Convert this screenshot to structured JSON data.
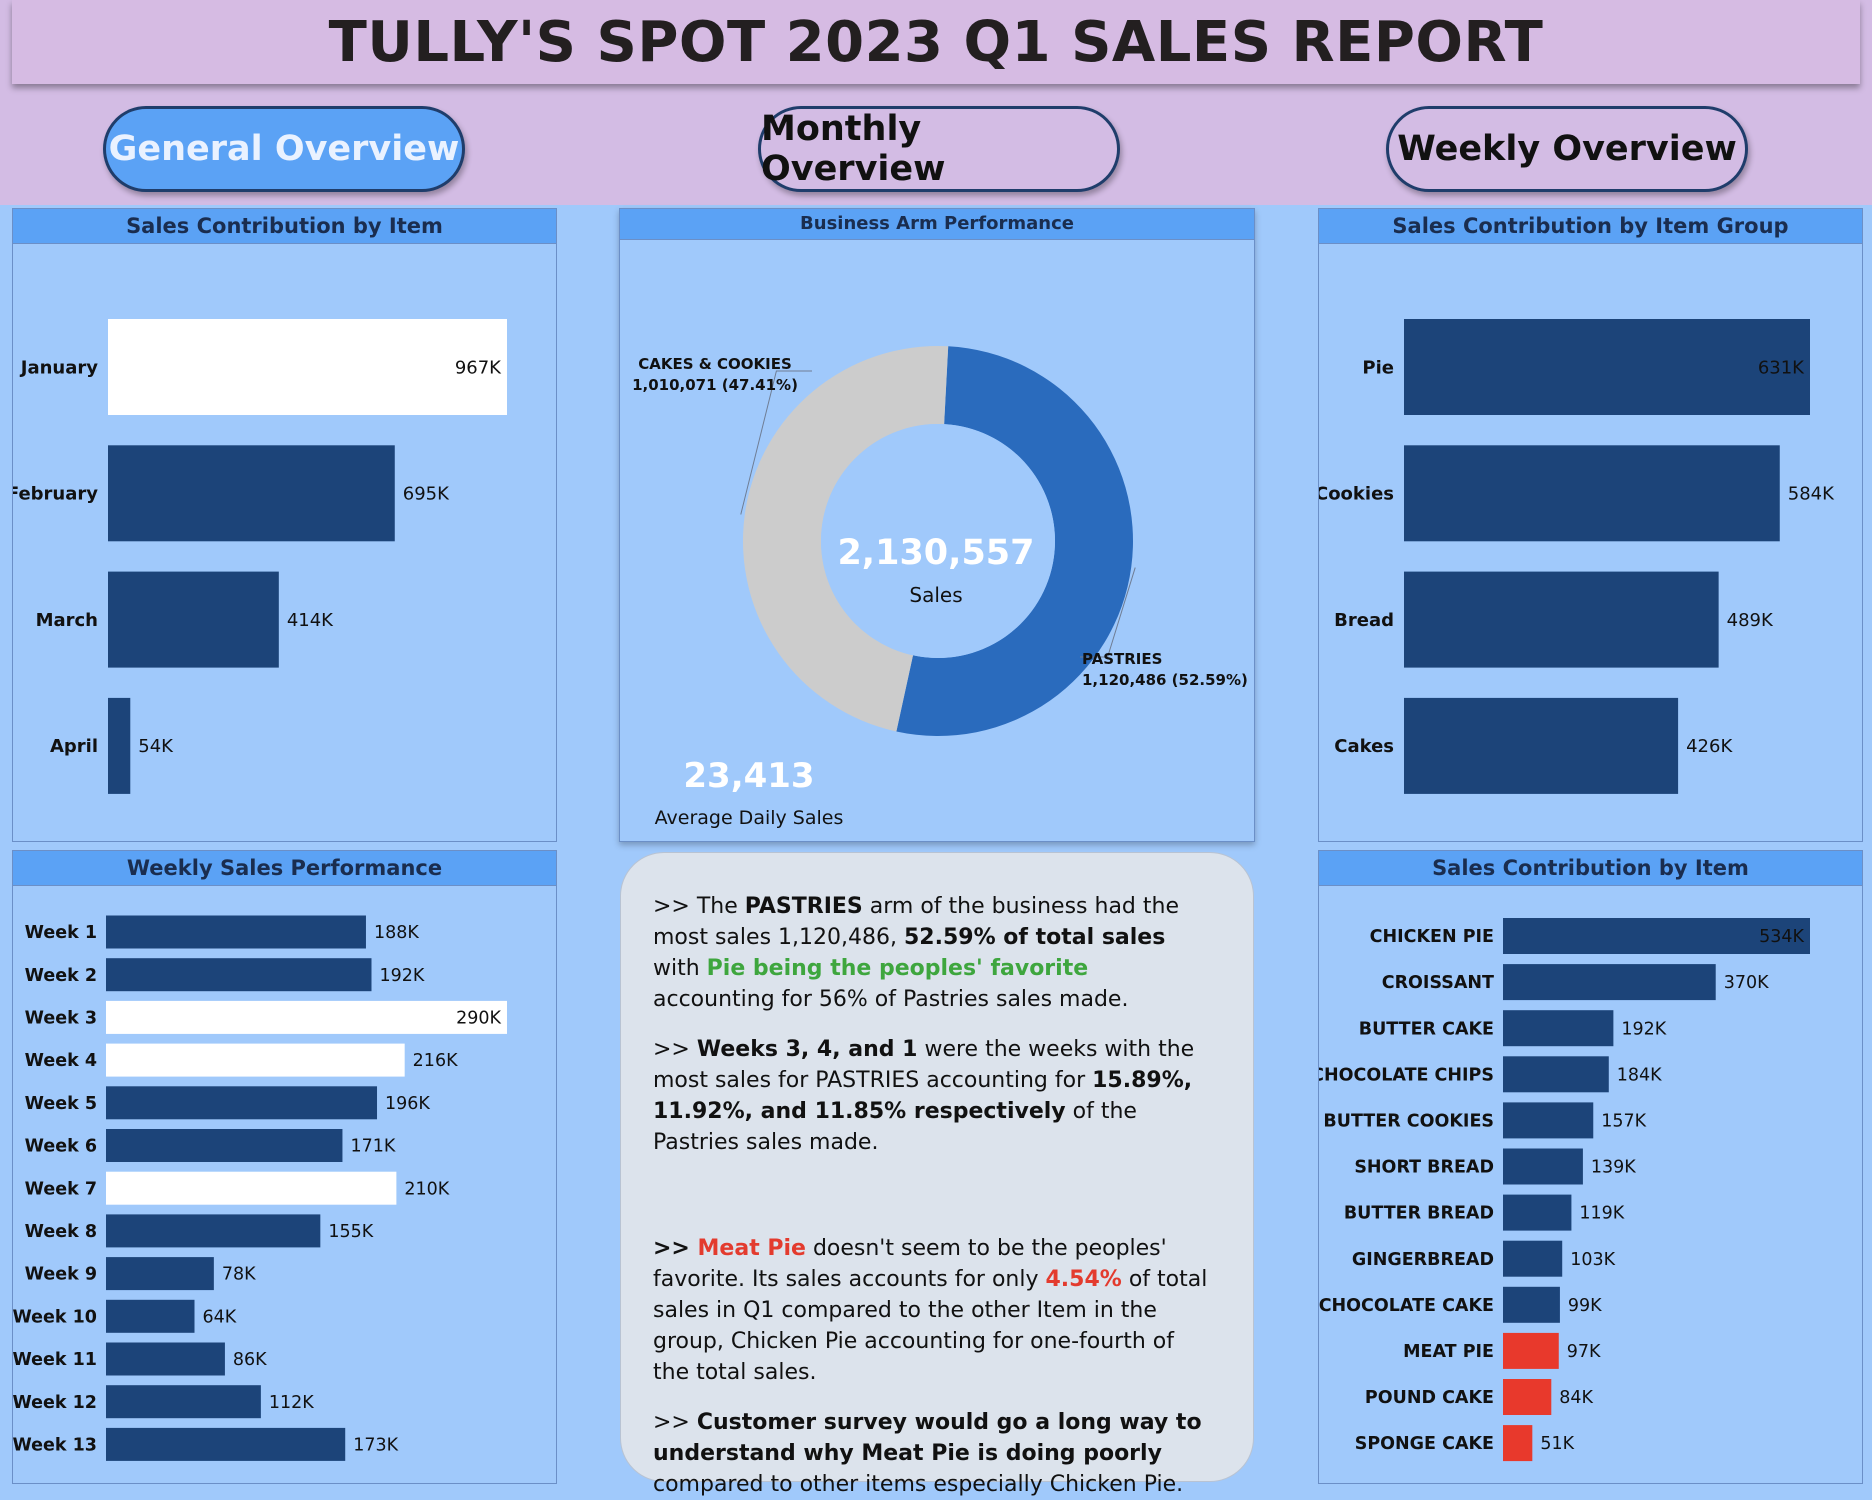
{
  "title": "TULLY'S SPOT 2023 Q1 SALES REPORT",
  "nav": {
    "general": "General Overview",
    "monthly": "Monthly Overview",
    "weekly": "Weekly Overview"
  },
  "colors": {
    "bar_dark": "#1c4479",
    "bar_highlight": "#ffffff",
    "bar_red": "#e8392c",
    "pastries": "#2a6bbd",
    "cakes_cookies": "#cccccc"
  },
  "panels": {
    "monthly": {
      "title": "Sales Contribution by Item"
    },
    "donut": {
      "title": "Business Arm Performance"
    },
    "group": {
      "title": "Sales Contribution by Item Group"
    },
    "weekly": {
      "title": "Weekly Sales Performance"
    },
    "items": {
      "title": "Sales Contribution by Item"
    }
  },
  "kpi": {
    "total_value": "2,130,557",
    "total_label": "Sales",
    "avg_value": "23,413",
    "avg_label": "Average Daily Sales"
  },
  "insights": {
    "p1_a": ">> The ",
    "p1_b": "PASTRIES",
    "p1_c": " arm of the business had the most sales 1,120,486, ",
    "p1_d": "52.59% of total sales",
    "p1_e": " with ",
    "p1_f": "Pie being the peoples' favorite",
    "p1_g": " accounting for 56% of Pastries sales made.",
    "p2_a": ">> ",
    "p2_b": "Weeks 3, 4, and 1",
    "p2_c": " were the weeks with the most sales for PASTRIES accounting for ",
    "p2_d": "15.89%, 11.92%, and 11.85% respectively",
    "p2_e": " of the Pastries sales made.",
    "p3_a": ">> ",
    "p3_b": "Meat Pie",
    "p3_c": " doesn't seem to be the peoples' favorite. Its sales accounts for only ",
    "p3_d": "4.54%",
    "p3_e": " of total sales in Q1 compared to the other Item in the group, Chicken Pie accounting for one-fourth of the total sales.",
    "p4_a": ">> ",
    "p4_b": "Customer survey would go a long way to understand why Meat Pie is doing poorly",
    "p4_c": " compared to other items especially Chicken Pie."
  },
  "chart_data": [
    {
      "type": "bar",
      "orientation": "horizontal",
      "title": "Sales Contribution by Item",
      "categories": [
        "January",
        "February",
        "March",
        "April"
      ],
      "values": [
        967000,
        695000,
        414000,
        54000
      ],
      "labels": [
        "967K",
        "695K",
        "414K",
        "54K"
      ],
      "highlight": [
        true,
        false,
        false,
        false
      ]
    },
    {
      "type": "pie",
      "title": "Business Arm Performance",
      "slices": [
        {
          "name": "PASTRIES",
          "value": 1120486,
          "label": "1,120,486 (52.59%)"
        },
        {
          "name": "CAKES & COOKIES",
          "value": 1010071,
          "label": "1,010,071 (47.41%)"
        }
      ]
    },
    {
      "type": "bar",
      "orientation": "horizontal",
      "title": "Sales Contribution by Item Group",
      "categories": [
        "Pie",
        "Cookies",
        "Bread",
        "Cakes"
      ],
      "values": [
        631000,
        584000,
        489000,
        426000
      ],
      "labels": [
        "631K",
        "584K",
        "489K",
        "426K"
      ]
    },
    {
      "type": "bar",
      "orientation": "horizontal",
      "title": "Weekly Sales Performance",
      "categories": [
        "Week 1",
        "Week 2",
        "Week 3",
        "Week 4",
        "Week 5",
        "Week 6",
        "Week 7",
        "Week 8",
        "Week 9",
        "Week 10",
        "Week 11",
        "Week 12",
        "Week 13"
      ],
      "values": [
        188000,
        192000,
        290000,
        216000,
        196000,
        171000,
        210000,
        155000,
        78000,
        64000,
        86000,
        112000,
        173000
      ],
      "labels": [
        "188K",
        "192K",
        "290K",
        "216K",
        "196K",
        "171K",
        "210K",
        "155K",
        "78K",
        "64K",
        "86K",
        "112K",
        "173K"
      ],
      "highlight": [
        false,
        false,
        true,
        true,
        false,
        false,
        true,
        false,
        false,
        false,
        false,
        false,
        false
      ]
    },
    {
      "type": "bar",
      "orientation": "horizontal",
      "title": "Sales Contribution by Item",
      "categories": [
        "CHICKEN PIE",
        "CROISSANT",
        "BUTTER CAKE",
        "CHOCOLATE CHIPS",
        "BUTTER COOKIES",
        "SHORT BREAD",
        "BUTTER BREAD",
        "GINGERBREAD",
        "CHOCOLATE CAKE",
        "MEAT PIE",
        "POUND CAKE",
        "SPONGE CAKE"
      ],
      "values": [
        534000,
        370000,
        192000,
        184000,
        157000,
        139000,
        119000,
        103000,
        99000,
        97000,
        84000,
        51000
      ],
      "labels": [
        "534K",
        "370K",
        "192K",
        "184K",
        "157K",
        "139K",
        "119K",
        "103K",
        "99K",
        "97K",
        "84K",
        "51K"
      ],
      "alert": [
        false,
        false,
        false,
        false,
        false,
        false,
        false,
        false,
        false,
        true,
        true,
        true
      ]
    }
  ]
}
